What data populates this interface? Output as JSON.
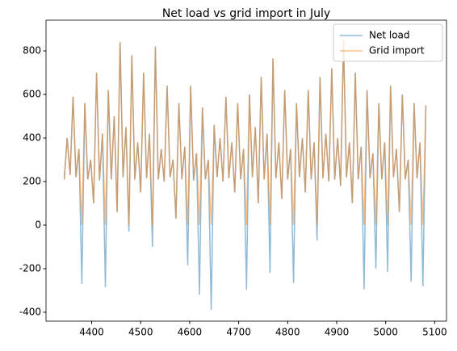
{
  "chart_data": {
    "type": "line",
    "title": "Net load vs grid import in July",
    "x": [
      4344,
      4350,
      4356,
      4362,
      4368,
      4374,
      4380,
      4386,
      4392,
      4398,
      4404,
      4410,
      4416,
      4422,
      4428,
      4434,
      4440,
      4446,
      4452,
      4458,
      4464,
      4470,
      4476,
      4482,
      4488,
      4494,
      4500,
      4506,
      4512,
      4518,
      4524,
      4530,
      4536,
      4542,
      4548,
      4554,
      4560,
      4566,
      4572,
      4578,
      4584,
      4590,
      4596,
      4602,
      4608,
      4614,
      4620,
      4626,
      4632,
      4638,
      4644,
      4650,
      4656,
      4662,
      4668,
      4674,
      4680,
      4686,
      4692,
      4698,
      4704,
      4710,
      4716,
      4722,
      4728,
      4734,
      4740,
      4746,
      4752,
      4758,
      4764,
      4770,
      4776,
      4782,
      4788,
      4794,
      4800,
      4806,
      4812,
      4818,
      4824,
      4830,
      4836,
      4842,
      4848,
      4854,
      4860,
      4866,
      4872,
      4878,
      4884,
      4890,
      4896,
      4902,
      4908,
      4914,
      4920,
      4926,
      4932,
      4938,
      4944,
      4950,
      4956,
      4962,
      4968,
      4974,
      4980,
      4986,
      4992,
      4998,
      5004,
      5010,
      5016,
      5022,
      5028,
      5034,
      5040,
      5046,
      5052,
      5058,
      5064,
      5070,
      5076,
      5082
    ],
    "series": [
      {
        "name": "Net load",
        "color": "#1f77b4",
        "values": [
          210,
          400,
          230,
          590,
          220,
          350,
          -270,
          560,
          210,
          300,
          100,
          700,
          205,
          420,
          -285,
          620,
          210,
          500,
          60,
          840,
          220,
          450,
          -30,
          780,
          210,
          380,
          150,
          700,
          215,
          420,
          -100,
          820,
          210,
          350,
          200,
          640,
          220,
          300,
          30,
          560,
          210,
          360,
          -185,
          640,
          205,
          330,
          -320,
          540,
          210,
          300,
          -390,
          460,
          220,
          400,
          200,
          590,
          215,
          380,
          150,
          560,
          210,
          350,
          -295,
          600,
          220,
          450,
          100,
          680,
          210,
          420,
          -220,
          765,
          215,
          380,
          120,
          620,
          210,
          350,
          -265,
          560,
          220,
          400,
          150,
          620,
          210,
          380,
          -70,
          680,
          215,
          420,
          200,
          720,
          210,
          400,
          180,
          850,
          220,
          380,
          100,
          700,
          210,
          360,
          -295,
          620,
          215,
          330,
          -200,
          560,
          210,
          380,
          -215,
          640,
          220,
          350,
          60,
          600,
          210,
          300,
          -260,
          560,
          215,
          380,
          -280,
          550
        ]
      },
      {
        "name": "Grid import",
        "color": "#ff7f0e",
        "values": [
          210,
          400,
          230,
          590,
          220,
          350,
          0,
          560,
          210,
          300,
          100,
          700,
          205,
          420,
          0,
          620,
          210,
          500,
          60,
          840,
          220,
          450,
          0,
          780,
          210,
          380,
          150,
          700,
          215,
          420,
          0,
          820,
          210,
          350,
          200,
          640,
          220,
          300,
          30,
          560,
          210,
          360,
          0,
          640,
          205,
          330,
          0,
          540,
          210,
          300,
          0,
          460,
          220,
          400,
          200,
          590,
          215,
          380,
          150,
          560,
          210,
          350,
          0,
          600,
          220,
          450,
          100,
          680,
          210,
          420,
          0,
          765,
          215,
          380,
          120,
          620,
          210,
          350,
          0,
          560,
          220,
          400,
          150,
          620,
          210,
          380,
          0,
          680,
          215,
          420,
          200,
          720,
          210,
          400,
          180,
          850,
          220,
          380,
          100,
          700,
          210,
          360,
          0,
          620,
          215,
          330,
          0,
          560,
          210,
          380,
          0,
          640,
          220,
          350,
          60,
          600,
          210,
          300,
          0,
          560,
          215,
          380,
          0,
          550
        ]
      }
    ],
    "alpha": 0.5,
    "xlim": [
      4306.85,
      5124.15
    ],
    "xticks": [
      4400,
      4500,
      4600,
      4700,
      4800,
      4900,
      5000,
      5100
    ],
    "ylim": [
      -441,
      941
    ],
    "yticks": [
      -400,
      -200,
      0,
      200,
      400,
      600,
      800
    ],
    "legend": "upper right"
  }
}
